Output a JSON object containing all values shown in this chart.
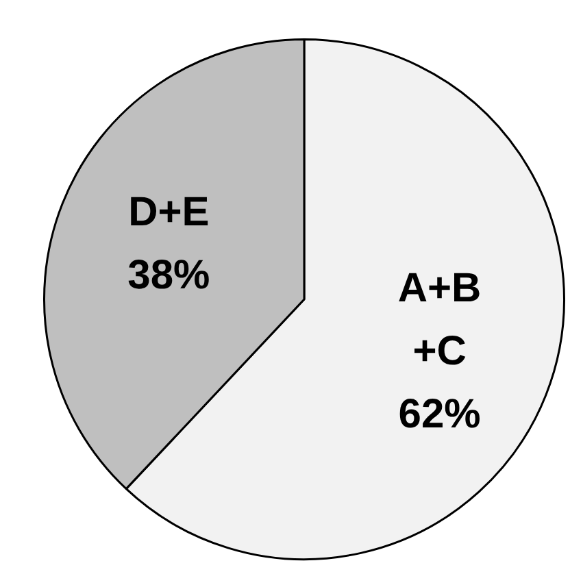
{
  "chart_data": {
    "type": "pie",
    "categories": [
      "A+B +C",
      "D+E"
    ],
    "values": [
      62,
      38
    ],
    "value_labels": [
      "62%",
      "38%"
    ],
    "colors": [
      "#f2f2f2",
      "#bfbfbf"
    ],
    "legend": false
  }
}
